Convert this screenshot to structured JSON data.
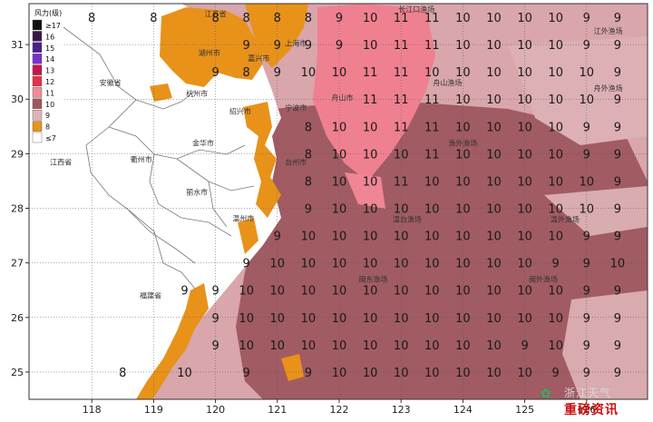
{
  "legend": {
    "title": "风力(级)",
    "items": [
      {
        "label": "≥17",
        "color": "#111111"
      },
      {
        "label": "16",
        "color": "#3a1848"
      },
      {
        "label": "15",
        "color": "#4b1f8a"
      },
      {
        "label": "14",
        "color": "#7a2fd0"
      },
      {
        "label": "13",
        "color": "#c4164a"
      },
      {
        "label": "12",
        "color": "#e8304b"
      },
      {
        "label": "11",
        "color": "#f08a98"
      },
      {
        "label": "10",
        "color": "#a0585f"
      },
      {
        "label": "9",
        "color": "#e0b4b6"
      },
      {
        "label": "8",
        "color": "#e8921a"
      },
      {
        "label": "≤7",
        "color": "#ffffff"
      }
    ]
  },
  "axes": {
    "x_ticks": [
      "118",
      "119",
      "120",
      "121",
      "122",
      "123",
      "124",
      "125",
      "126"
    ],
    "y_ticks": [
      "31",
      "30",
      "29",
      "28",
      "27",
      "26",
      "25"
    ],
    "x_range": [
      117,
      127
    ],
    "y_range": [
      24.5,
      31.75
    ]
  },
  "places": [
    {
      "name": "江苏省",
      "lon": 120.0,
      "lat": 31.57
    },
    {
      "name": "上海市",
      "lon": 121.3,
      "lat": 31.03
    },
    {
      "name": "湖州市",
      "lon": 119.9,
      "lat": 30.85
    },
    {
      "name": "嘉兴市",
      "lon": 120.7,
      "lat": 30.75
    },
    {
      "name": "安徽省",
      "lon": 118.3,
      "lat": 30.3
    },
    {
      "name": "杭州市",
      "lon": 119.7,
      "lat": 30.1
    },
    {
      "name": "宁波市",
      "lon": 121.3,
      "lat": 29.85
    },
    {
      "name": "绍兴市",
      "lon": 120.4,
      "lat": 29.78
    },
    {
      "name": "舟山市",
      "lon": 122.05,
      "lat": 30.03
    },
    {
      "name": "金华市",
      "lon": 119.8,
      "lat": 29.2
    },
    {
      "name": "衢州市",
      "lon": 118.8,
      "lat": 28.9
    },
    {
      "name": "台州市",
      "lon": 121.3,
      "lat": 28.85
    },
    {
      "name": "江西省",
      "lon": 117.5,
      "lat": 28.85
    },
    {
      "name": "丽水市",
      "lon": 119.7,
      "lat": 28.3
    },
    {
      "name": "温州市",
      "lon": 120.45,
      "lat": 27.82
    },
    {
      "name": "福建省",
      "lon": 118.95,
      "lat": 26.4
    },
    {
      "name": "长江口渔场",
      "lon": 123.25,
      "lat": 31.65
    },
    {
      "name": "江外渔场",
      "lon": 126.35,
      "lat": 31.25
    },
    {
      "name": "舟山渔场",
      "lon": 123.75,
      "lat": 30.3
    },
    {
      "name": "舟外渔场",
      "lon": 126.35,
      "lat": 30.2
    },
    {
      "name": "渔外渔场",
      "lon": 124.0,
      "lat": 29.2
    },
    {
      "name": "温台渔场",
      "lon": 123.1,
      "lat": 27.8
    },
    {
      "name": "温外渔场",
      "lon": 125.65,
      "lat": 27.8
    },
    {
      "name": "闽东渔场",
      "lon": 122.55,
      "lat": 26.7
    },
    {
      "name": "闽外渔场",
      "lon": 125.3,
      "lat": 26.7
    }
  ],
  "grid": {
    "lons": [
      118,
      118.5,
      119,
      119.5,
      120,
      120.5,
      121,
      121.5,
      122,
      122.5,
      123,
      123.5,
      124,
      124.5,
      125,
      125.5,
      126,
      126.5
    ],
    "lats": [
      31.5,
      31.0,
      30.5,
      30.0,
      29.5,
      29.0,
      28.5,
      28.0,
      27.5,
      27.0,
      26.5,
      26.0,
      25.5,
      25.0
    ],
    "rows": [
      [
        "8",
        "",
        "8",
        "",
        "8",
        "8",
        "8",
        "8",
        "9",
        "10",
        "11",
        "11",
        "10",
        "10",
        "10",
        "10",
        "9",
        "9"
      ],
      [
        "",
        "",
        "",
        "",
        "",
        "9",
        "9",
        "9",
        "9",
        "10",
        "11",
        "11",
        "10",
        "10",
        "10",
        "10",
        "9",
        "9"
      ],
      [
        "",
        "",
        "",
        "",
        "9",
        "8",
        "9",
        "10",
        "10",
        "11",
        "11",
        "10",
        "10",
        "10",
        "10",
        "10",
        "10",
        "9"
      ],
      [
        "",
        "",
        "",
        "",
        "",
        "",
        "",
        "",
        "",
        "11",
        "11",
        "11",
        "10",
        "10",
        "10",
        "10",
        "10",
        "9"
      ],
      [
        "",
        "",
        "",
        "",
        "",
        "",
        "",
        "8",
        "10",
        "10",
        "11",
        "11",
        "10",
        "10",
        "10",
        "10",
        "9",
        "9"
      ],
      [
        "",
        "",
        "",
        "",
        "",
        "",
        "",
        "8",
        "10",
        "10",
        "10",
        "11",
        "10",
        "10",
        "10",
        "10",
        "9",
        "9"
      ],
      [
        "",
        "",
        "",
        "",
        "",
        "",
        "",
        "8",
        "10",
        "10",
        "11",
        "10",
        "10",
        "10",
        "10",
        "10",
        "10",
        "9"
      ],
      [
        "",
        "",
        "",
        "",
        "",
        "",
        "",
        "9",
        "10",
        "10",
        "10",
        "10",
        "10",
        "10",
        "10",
        "10",
        "10",
        "9"
      ],
      [
        "",
        "",
        "",
        "",
        "",
        "",
        "9",
        "10",
        "10",
        "10",
        "10",
        "10",
        "10",
        "10",
        "10",
        "10",
        "9",
        "9"
      ],
      [
        "",
        "",
        "",
        "",
        "",
        "9",
        "10",
        "10",
        "10",
        "10",
        "10",
        "10",
        "10",
        "10",
        "10",
        "9",
        "9",
        "10"
      ],
      [
        "",
        "",
        "",
        "9",
        "9",
        "10",
        "10",
        "10",
        "10",
        "10",
        "10",
        "10",
        "10",
        "10",
        "10",
        "10",
        "9",
        "9"
      ],
      [
        "",
        "",
        "",
        "",
        "9",
        "10",
        "10",
        "10",
        "10",
        "10",
        "10",
        "10",
        "10",
        "10",
        "10",
        "10",
        "9",
        "9"
      ],
      [
        "",
        "",
        "",
        "",
        "9",
        "10",
        "10",
        "10",
        "10",
        "10",
        "10",
        "10",
        "10",
        "10",
        "9",
        "10",
        "9",
        "9"
      ],
      [
        "",
        "8",
        "",
        "10",
        "",
        "9",
        "",
        "9",
        "10",
        "10",
        "10",
        "10",
        "10",
        "10",
        "10",
        "9",
        "9",
        "9"
      ]
    ]
  },
  "watermark": {
    "icon": "✿",
    "title": "浙江天气",
    "subtitle": "重磅资讯"
  }
}
